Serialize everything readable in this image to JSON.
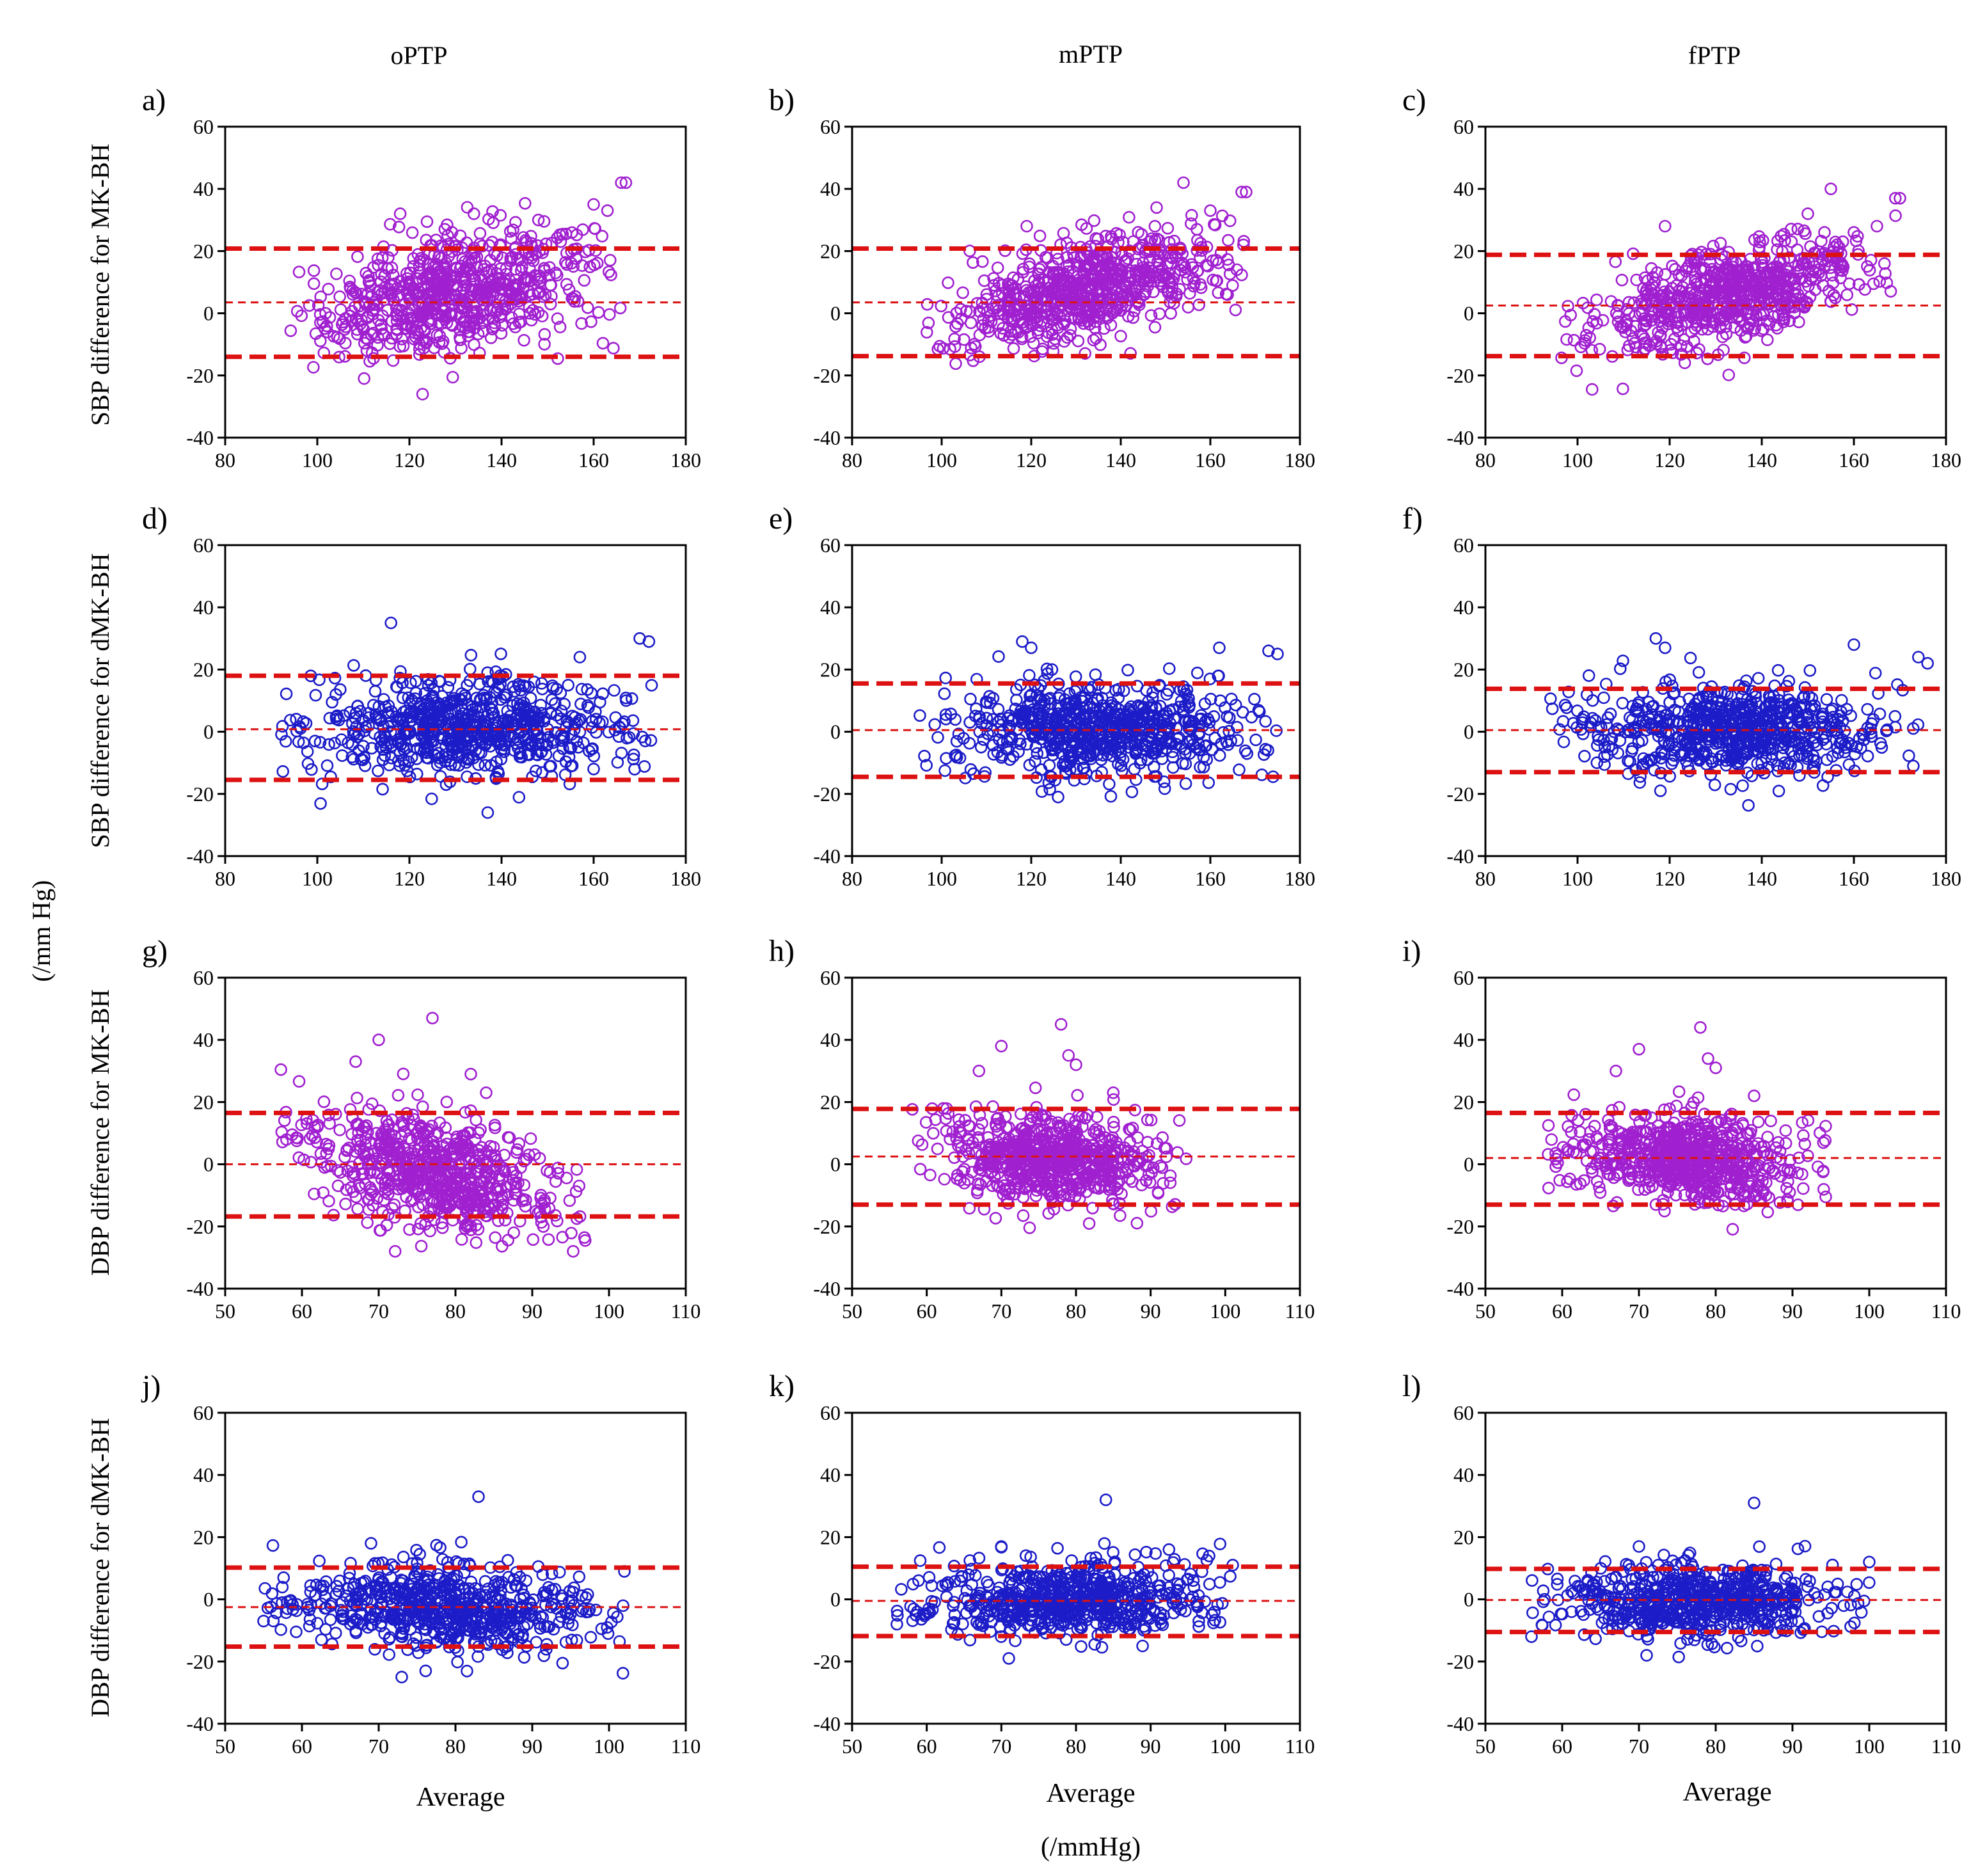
{
  "figure": {
    "column_titles": [
      "oPTP",
      "mPTP",
      "fPTP"
    ],
    "row_ylabels": [
      "SBP difference for MK-BH",
      "SBP difference for dMK-BH",
      "DBP difference for MK-BH",
      "DBP difference for dMK-BH"
    ],
    "global_ylabel": "(/mm Hg)",
    "xlabel_each_column": "Average",
    "global_xlabel": "(/mmHg)",
    "colors": {
      "magenta_markers": "#a020d0",
      "blue_markers": "#1c1cc8",
      "limit_lines": "#dd1111"
    }
  },
  "chart_data": [
    {
      "panel": "a)",
      "type": "scatter",
      "column": "oPTP",
      "ylabel": "SBP difference for MK-BH",
      "xlim": [
        80,
        180
      ],
      "ylim": [
        -40,
        60
      ],
      "xticks": [
        80,
        100,
        120,
        140,
        160,
        180
      ],
      "yticks": [
        -40,
        -20,
        0,
        20,
        40,
        60
      ],
      "marker_color": "#a020d0",
      "x_range": [
        94,
        167
      ],
      "y_spread": 9,
      "slope": 0.3,
      "center_x": 120,
      "n_points": 700,
      "mean_line": 3.5,
      "upper_loa": 20.8,
      "lower_loa": -14.0,
      "outliers": [
        [
          166,
          42
        ],
        [
          167,
          42
        ],
        [
          163,
          33
        ],
        [
          160,
          35
        ],
        [
          148,
          30
        ],
        [
          134,
          32
        ],
        [
          118,
          32
        ]
      ]
    },
    {
      "panel": "b)",
      "type": "scatter",
      "column": "mPTP",
      "ylabel": "SBP difference for MK-BH",
      "xlim": [
        80,
        180
      ],
      "ylim": [
        -40,
        60
      ],
      "xticks": [
        80,
        100,
        120,
        140,
        160,
        180
      ],
      "yticks": [
        -40,
        -20,
        0,
        20,
        40,
        60
      ],
      "marker_color": "#a020d0",
      "x_range": [
        96,
        168
      ],
      "y_spread": 8,
      "slope": 0.38,
      "center_x": 122,
      "n_points": 700,
      "mean_line": 3.5,
      "upper_loa": 20.8,
      "lower_loa": -13.8,
      "outliers": [
        [
          154,
          42
        ],
        [
          167,
          39
        ],
        [
          168,
          39
        ],
        [
          160,
          33
        ],
        [
          157,
          27
        ],
        [
          148,
          34
        ],
        [
          119,
          28
        ]
      ]
    },
    {
      "panel": "c)",
      "type": "scatter",
      "column": "fPTP",
      "ylabel": "SBP difference for MK-BH",
      "xlim": [
        80,
        180
      ],
      "ylim": [
        -40,
        60
      ],
      "xticks": [
        80,
        100,
        120,
        140,
        160,
        180
      ],
      "yticks": [
        -40,
        -20,
        0,
        20,
        40,
        60
      ],
      "marker_color": "#a020d0",
      "x_range": [
        96,
        170
      ],
      "y_spread": 7.5,
      "slope": 0.32,
      "center_x": 122,
      "n_points": 700,
      "mean_line": 2.5,
      "upper_loa": 18.8,
      "lower_loa": -13.8,
      "outliers": [
        [
          155,
          40
        ],
        [
          169,
          37
        ],
        [
          170,
          37
        ],
        [
          165,
          28
        ],
        [
          160,
          26
        ],
        [
          150,
          32
        ],
        [
          119,
          28
        ]
      ]
    },
    {
      "panel": "d)",
      "type": "scatter",
      "column": "oPTP",
      "ylabel": "SBP difference for dMK-BH",
      "xlim": [
        80,
        180
      ],
      "ylim": [
        -40,
        60
      ],
      "xticks": [
        80,
        100,
        120,
        140,
        160,
        180
      ],
      "yticks": [
        -40,
        -20,
        0,
        20,
        40,
        60
      ],
      "marker_color": "#1c1cc8",
      "x_range": [
        92,
        173
      ],
      "y_spread": 8,
      "slope": 0.0,
      "center_x": 122,
      "n_points": 700,
      "mean_line": 0.8,
      "upper_loa": 18.0,
      "lower_loa": -15.5,
      "outliers": [
        [
          116,
          35
        ],
        [
          170,
          30
        ],
        [
          172,
          29
        ],
        [
          157,
          24
        ],
        [
          137,
          -26
        ],
        [
          160,
          -12
        ]
      ]
    },
    {
      "panel": "e)",
      "type": "scatter",
      "column": "mPTP",
      "ylabel": "SBP difference for dMK-BH",
      "xlim": [
        80,
        180
      ],
      "ylim": [
        -40,
        60
      ],
      "xticks": [
        80,
        100,
        120,
        140,
        160,
        180
      ],
      "yticks": [
        -40,
        -20,
        0,
        20,
        40,
        60
      ],
      "marker_color": "#1c1cc8",
      "x_range": [
        95,
        175
      ],
      "y_spread": 7.5,
      "slope": 0.0,
      "center_x": 124,
      "n_points": 700,
      "mean_line": 0.5,
      "upper_loa": 15.5,
      "lower_loa": -14.5,
      "outliers": [
        [
          118,
          29
        ],
        [
          120,
          27
        ],
        [
          173,
          26
        ],
        [
          175,
          25
        ],
        [
          162,
          27
        ],
        [
          126,
          -21
        ]
      ]
    },
    {
      "panel": "f)",
      "type": "scatter",
      "column": "fPTP",
      "ylabel": "SBP difference for dMK-BH",
      "xlim": [
        80,
        180
      ],
      "ylim": [
        -40,
        60
      ],
      "xticks": [
        80,
        100,
        120,
        140,
        160,
        180
      ],
      "yticks": [
        -40,
        -20,
        0,
        20,
        40,
        60
      ],
      "marker_color": "#1c1cc8",
      "x_range": [
        94,
        176
      ],
      "y_spread": 7,
      "slope": 0.0,
      "center_x": 124,
      "n_points": 700,
      "mean_line": 0.5,
      "upper_loa": 13.8,
      "lower_loa": -13.0,
      "outliers": [
        [
          117,
          30
        ],
        [
          119,
          27
        ],
        [
          174,
          24
        ],
        [
          176,
          22
        ],
        [
          160,
          28
        ],
        [
          118,
          -19
        ]
      ]
    },
    {
      "panel": "g)",
      "type": "scatter",
      "column": "oPTP",
      "ylabel": "DBP difference for MK-BH",
      "xlim": [
        50,
        110
      ],
      "ylim": [
        -40,
        60
      ],
      "xticks": [
        50,
        60,
        70,
        80,
        90,
        100,
        110
      ],
      "yticks": [
        -40,
        -20,
        0,
        20,
        40,
        60
      ],
      "marker_color": "#a020d0",
      "x_range": [
        57,
        97
      ],
      "y_spread": 9,
      "slope": -0.45,
      "center_x": 73,
      "n_points": 700,
      "mean_line": 0.0,
      "upper_loa": 16.5,
      "lower_loa": -16.8,
      "outliers": [
        [
          77,
          47
        ],
        [
          70,
          40
        ],
        [
          67,
          33
        ],
        [
          82,
          29
        ],
        [
          84,
          23
        ],
        [
          74,
          -21
        ]
      ]
    },
    {
      "panel": "h)",
      "type": "scatter",
      "column": "mPTP",
      "ylabel": "DBP difference for MK-BH",
      "xlim": [
        50,
        110
      ],
      "ylim": [
        -40,
        60
      ],
      "xticks": [
        50,
        60,
        70,
        80,
        90,
        100,
        110
      ],
      "yticks": [
        -40,
        -20,
        0,
        20,
        40,
        60
      ],
      "marker_color": "#a020d0",
      "x_range": [
        58,
        95
      ],
      "y_spread": 7,
      "slope": -0.15,
      "center_x": 73,
      "n_points": 700,
      "mean_line": 2.5,
      "upper_loa": 17.8,
      "lower_loa": -13.0,
      "outliers": [
        [
          78,
          45
        ],
        [
          70,
          38
        ],
        [
          79,
          35
        ],
        [
          80,
          32
        ],
        [
          67,
          30
        ],
        [
          85,
          23
        ]
      ]
    },
    {
      "panel": "i)",
      "type": "scatter",
      "column": "fPTP",
      "ylabel": "DBP difference for MK-BH",
      "xlim": [
        50,
        110
      ],
      "ylim": [
        -40,
        60
      ],
      "xticks": [
        50,
        60,
        70,
        80,
        90,
        100,
        110
      ],
      "yticks": [
        -40,
        -20,
        0,
        20,
        40,
        60
      ],
      "marker_color": "#a020d0",
      "x_range": [
        58,
        95
      ],
      "y_spread": 7,
      "slope": -0.15,
      "center_x": 73,
      "n_points": 700,
      "mean_line": 2.0,
      "upper_loa": 16.5,
      "lower_loa": -13.0,
      "outliers": [
        [
          78,
          44
        ],
        [
          70,
          37
        ],
        [
          79,
          34
        ],
        [
          80,
          31
        ],
        [
          67,
          30
        ],
        [
          85,
          22
        ]
      ]
    },
    {
      "panel": "j)",
      "type": "scatter",
      "column": "oPTP",
      "ylabel": "DBP difference for dMK-BH",
      "xlim": [
        50,
        110
      ],
      "ylim": [
        -40,
        60
      ],
      "xticks": [
        50,
        60,
        70,
        80,
        90,
        100,
        110
      ],
      "yticks": [
        -40,
        -20,
        0,
        20,
        40,
        60
      ],
      "marker_color": "#1c1cc8",
      "x_range": [
        55,
        102
      ],
      "y_spread": 6.5,
      "slope": -0.1,
      "center_x": 74,
      "n_points": 650,
      "mean_line": -2.5,
      "upper_loa": 10.2,
      "lower_loa": -15.2,
      "outliers": [
        [
          83,
          33
        ],
        [
          73,
          -25
        ],
        [
          102,
          9
        ],
        [
          55,
          -7
        ],
        [
          69,
          18
        ]
      ]
    },
    {
      "panel": "k)",
      "type": "scatter",
      "column": "mPTP",
      "ylabel": "DBP difference for dMK-BH",
      "xlim": [
        50,
        110
      ],
      "ylim": [
        -40,
        60
      ],
      "xticks": [
        50,
        60,
        70,
        80,
        90,
        100,
        110
      ],
      "yticks": [
        -40,
        -20,
        0,
        20,
        40,
        60
      ],
      "marker_color": "#1c1cc8",
      "x_range": [
        56,
        101
      ],
      "y_spread": 6,
      "slope": 0.05,
      "center_x": 74,
      "n_points": 650,
      "mean_line": -0.5,
      "upper_loa": 10.5,
      "lower_loa": -11.8,
      "outliers": [
        [
          84,
          32
        ],
        [
          101,
          11
        ],
        [
          71,
          -19
        ],
        [
          56,
          -8
        ],
        [
          70,
          17
        ]
      ]
    },
    {
      "panel": "l)",
      "type": "scatter",
      "column": "fPTP",
      "ylabel": "DBP difference for dMK-BH",
      "xlim": [
        50,
        110
      ],
      "ylim": [
        -40,
        60
      ],
      "xticks": [
        50,
        60,
        70,
        80,
        90,
        100,
        110
      ],
      "yticks": [
        -40,
        -20,
        0,
        20,
        40,
        60
      ],
      "marker_color": "#1c1cc8",
      "x_range": [
        56,
        100
      ],
      "y_spread": 6,
      "slope": 0.05,
      "center_x": 74,
      "n_points": 650,
      "mean_line": -0.2,
      "upper_loa": 9.8,
      "lower_loa": -10.5,
      "outliers": [
        [
          85,
          31
        ],
        [
          100,
          12
        ],
        [
          71,
          -18
        ],
        [
          56,
          -12
        ],
        [
          70,
          17
        ]
      ]
    }
  ]
}
